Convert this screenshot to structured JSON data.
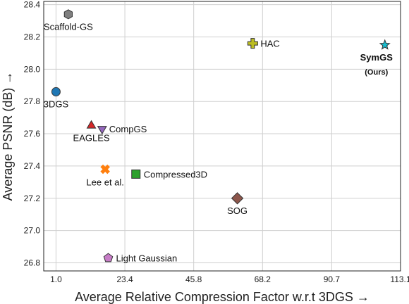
{
  "chart_data": {
    "type": "scatter",
    "xlabel": "Average Relative Compression Factor w.r.t 3DGS →",
    "ylabel": "Average PSNR (dB) →",
    "xlim": [
      -3,
      113.1
    ],
    "ylim": [
      26.75,
      28.42
    ],
    "xticks": [
      "1.0",
      "23.4",
      "45.8",
      "68.2",
      "90.7",
      "113.1"
    ],
    "xtick_values": [
      1.0,
      23.4,
      45.8,
      68.2,
      90.7,
      113.1
    ],
    "yticks": [
      "26.8",
      "27.0",
      "27.2",
      "27.4",
      "27.6",
      "27.8",
      "28.0",
      "28.2",
      "28.4"
    ],
    "ytick_values": [
      26.8,
      27.0,
      27.2,
      27.4,
      27.6,
      27.8,
      28.0,
      28.2,
      28.4
    ],
    "grid": true,
    "points": [
      {
        "name": "Scaffold-GS",
        "x": 5.0,
        "y": 28.34,
        "marker": "hexagon",
        "color": "#7f7f7f"
      },
      {
        "name": "HAC",
        "x": 65.0,
        "y": 28.16,
        "marker": "plus",
        "color": "#bcbd22"
      },
      {
        "name": "SymGS",
        "sublabel": "(Ours)",
        "x": 108.0,
        "y": 28.15,
        "marker": "star",
        "color": "#17becf"
      },
      {
        "name": "3DGS",
        "x": 1.0,
        "y": 27.86,
        "marker": "circle",
        "color": "#1f77b4"
      },
      {
        "name": "EAGLES",
        "x": 12.5,
        "y": 27.65,
        "marker": "triangle-up",
        "color": "#d62728"
      },
      {
        "name": "CompGS",
        "x": 16.0,
        "y": 27.63,
        "marker": "triangle-down",
        "color": "#9467bd"
      },
      {
        "name": "Lee et al.",
        "x": 17.0,
        "y": 27.38,
        "marker": "x",
        "color": "#ff7f0e"
      },
      {
        "name": "Compressed3D",
        "x": 27.0,
        "y": 27.35,
        "marker": "square",
        "color": "#2ca02c"
      },
      {
        "name": "SOG",
        "x": 60.0,
        "y": 27.2,
        "marker": "diamond",
        "color": "#8c564b"
      },
      {
        "name": "Light Gaussian",
        "x": 18.0,
        "y": 26.83,
        "marker": "pentagon",
        "color": "#c77cc7"
      }
    ]
  }
}
